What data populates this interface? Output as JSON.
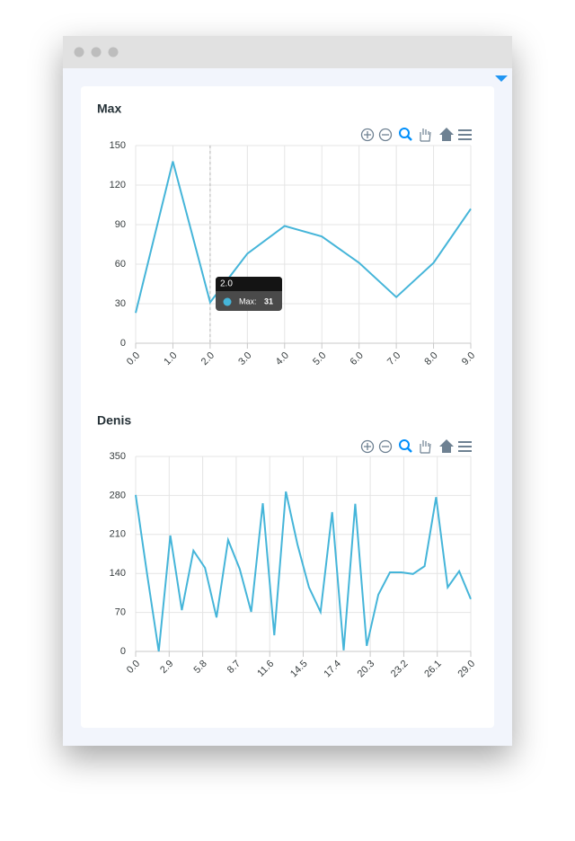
{
  "chart_data": [
    {
      "type": "line",
      "title": "Max",
      "x": [
        0,
        1,
        2,
        3,
        4,
        5,
        6,
        7,
        8,
        9
      ],
      "values": [
        23,
        138,
        31,
        68,
        89,
        81,
        61,
        35,
        61,
        102
      ],
      "color": "#45b5d9",
      "xlim": [
        0,
        9
      ],
      "ylim": [
        0,
        150
      ],
      "xticks": [
        {
          "value": 0,
          "label": "0.0"
        },
        {
          "value": 1,
          "label": "1.0"
        },
        {
          "value": 2,
          "label": "2.0"
        },
        {
          "value": 3,
          "label": "3.0"
        },
        {
          "value": 4,
          "label": "4.0"
        },
        {
          "value": 5,
          "label": "5.0"
        },
        {
          "value": 6,
          "label": "6.0"
        },
        {
          "value": 7,
          "label": "7.0"
        },
        {
          "value": 8,
          "label": "8.0"
        },
        {
          "value": 9,
          "label": "9.0"
        }
      ],
      "yticks": [
        0,
        30,
        60,
        90,
        120,
        150
      ],
      "grid": true,
      "tooltip": {
        "title": "2.0",
        "series": "Max:",
        "value": 31
      }
    },
    {
      "type": "line",
      "title": "Denis",
      "x": [
        0,
        1,
        2,
        3,
        4,
        5,
        6,
        7,
        8,
        9,
        10,
        11,
        12,
        13,
        14,
        15,
        16,
        17,
        18,
        19,
        20,
        21,
        22,
        23,
        24,
        25,
        26,
        27,
        28,
        29
      ],
      "values": [
        281,
        137,
        0,
        208,
        74,
        181,
        150,
        61,
        200,
        148,
        71,
        266,
        29,
        287,
        192,
        115,
        71,
        250,
        2,
        265,
        10,
        102,
        142,
        142,
        139,
        153,
        277,
        115,
        144,
        94
      ],
      "color": "#45b5d9",
      "xlim": [
        0,
        29
      ],
      "ylim": [
        0,
        350
      ],
      "xticks": [
        {
          "value": 0,
          "label": "0.0"
        },
        2.9,
        5.8,
        8.7,
        11.6,
        14.5,
        17.4,
        20.3,
        23.2,
        26.1,
        {
          "value": 29,
          "label": "29.0"
        }
      ],
      "yticks": [
        0,
        70,
        140,
        210,
        280,
        350
      ],
      "grid": true
    }
  ]
}
